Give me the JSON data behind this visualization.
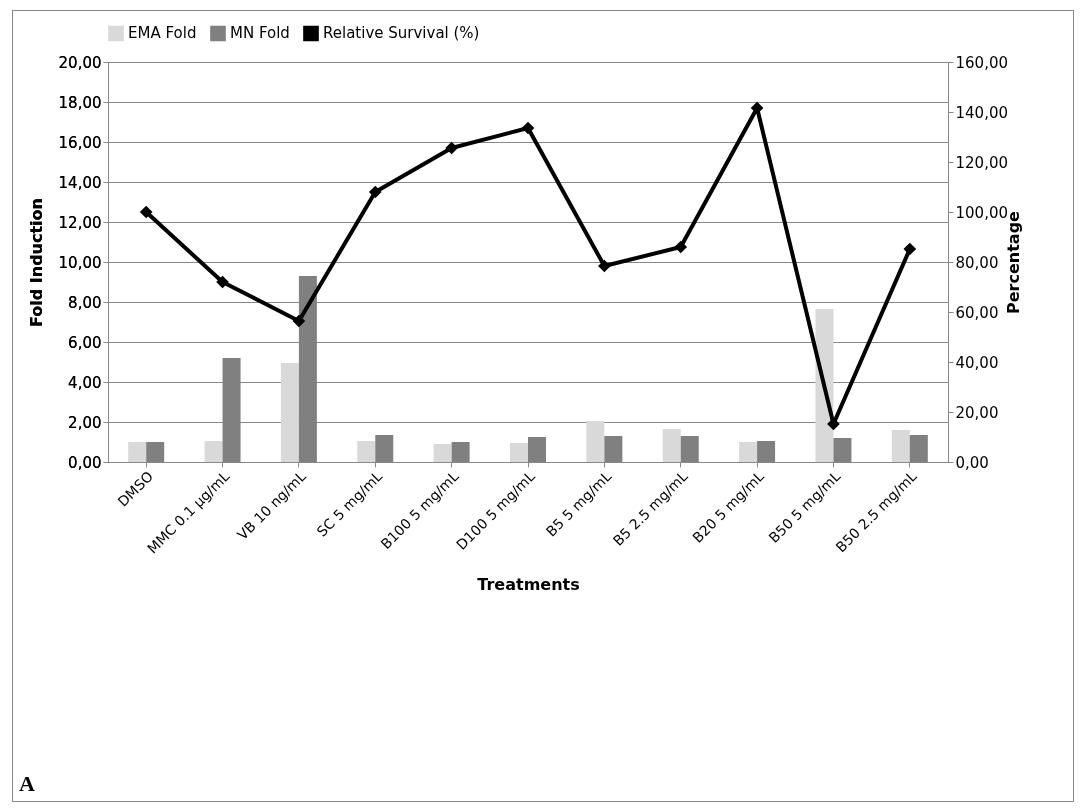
{
  "chart_data": {
    "type": "bar",
    "xlabel": "Treatments",
    "ylabel": "Fold Induction",
    "y2label": "Percentage",
    "categories": [
      "DMSO",
      "MMC 0.1 µg/mL",
      "VB 10 ng/mL",
      "SC 5 mg/mL",
      "B100 5 mg/mL",
      "D100 5 mg/mL",
      "B5 5 mg/mL",
      "B5 2.5 mg/mL",
      "B20 5 mg/mL",
      "B50 5 mg/mL",
      "B50 2.5 mg/mL"
    ],
    "series": [
      {
        "name": "EMA Fold",
        "color": "#d9d9d9",
        "values": [
          1.0,
          1.05,
          4.95,
          1.05,
          0.9,
          0.95,
          2.05,
          1.65,
          1.0,
          7.65,
          1.6
        ]
      },
      {
        "name": "MN Fold",
        "color": "#808080",
        "values": [
          1.0,
          5.2,
          9.3,
          1.35,
          1.0,
          1.25,
          1.3,
          1.3,
          1.05,
          1.2,
          1.35
        ]
      },
      {
        "name": "Relative Survival (%)",
        "type": "line",
        "axis": "y2",
        "color": "#000000",
        "marker": "diamond",
        "values": [
          100,
          72,
          56.4,
          108,
          125.6,
          133.6,
          78.4,
          86,
          141.6,
          15.2,
          85.2
        ]
      }
    ],
    "ylim": [
      0,
      20
    ],
    "yticks": [
      {
        "value": 0,
        "label": "0,00"
      },
      {
        "value": 2,
        "label": "2,00"
      },
      {
        "value": 4,
        "label": "4,00"
      },
      {
        "value": 6,
        "label": "6,00"
      },
      {
        "value": 8,
        "label": "8,00"
      },
      {
        "value": 10,
        "label": "10,00"
      },
      {
        "value": 12,
        "label": "12,00"
      },
      {
        "value": 14,
        "label": "14,00"
      },
      {
        "value": 16,
        "label": "16,00"
      },
      {
        "value": 18,
        "label": "18,00"
      },
      {
        "value": 20,
        "label": "20,00"
      }
    ],
    "y2lim": [
      0,
      160
    ],
    "y2ticks": [
      {
        "value": 0,
        "label": "0,00"
      },
      {
        "value": 20,
        "label": "20,00"
      },
      {
        "value": 40,
        "label": "40,00"
      },
      {
        "value": 60,
        "label": "60,00"
      },
      {
        "value": 80,
        "label": "80,00"
      },
      {
        "value": 100,
        "label": "100,00"
      },
      {
        "value": 120,
        "label": "120,00"
      },
      {
        "value": 140,
        "label": "140,00"
      },
      {
        "value": 160,
        "label": "160,00"
      }
    ],
    "grid": "y",
    "legend": "top",
    "annotations": [
      "A"
    ]
  }
}
